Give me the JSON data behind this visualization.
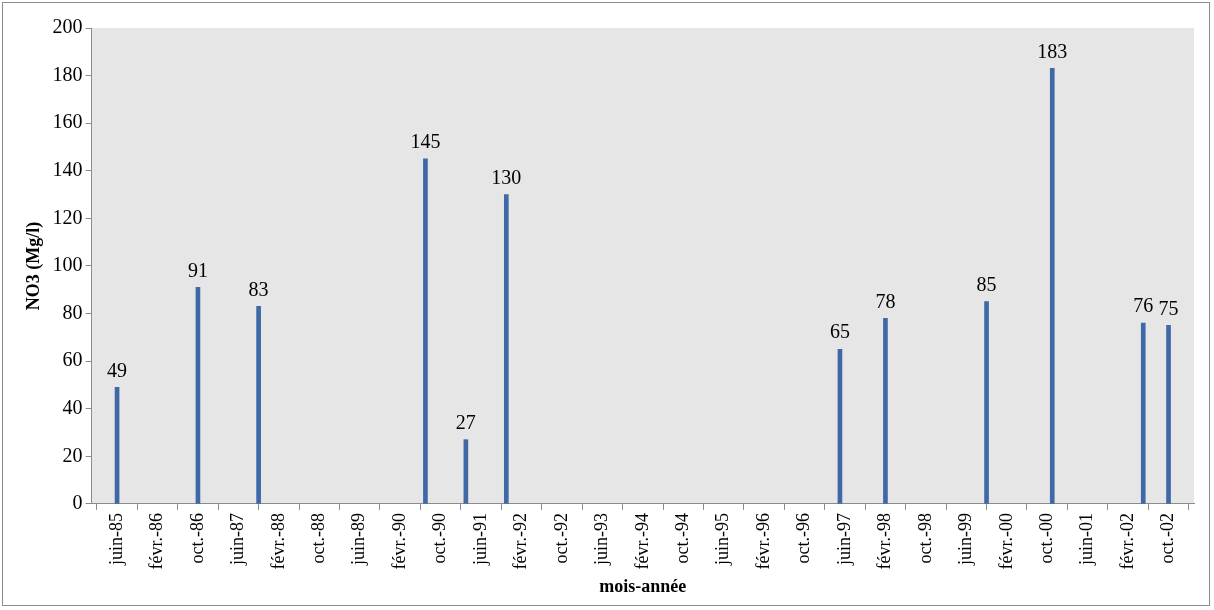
{
  "chart_data": {
    "type": "bar",
    "xlabel": "mois-année",
    "ylabel": "NO3 (Mg/l)",
    "x": [
      "1985-06",
      "1986-10",
      "1987-10",
      "1990-07",
      "1991-03",
      "1991-11",
      "1997-05",
      "1998-02",
      "1999-10",
      "2000-11",
      "2002-05",
      "2002-10"
    ],
    "values": [
      49,
      91,
      83,
      145,
      27,
      130,
      65,
      78,
      85,
      183,
      76,
      75
    ],
    "color": "#3e68a6",
    "data_labels": true,
    "xlim": [
      "1985-05",
      "2002-11"
    ],
    "xticks": [
      {
        "value": "1985-06",
        "label": "juin-85"
      },
      {
        "value": "1986-02",
        "label": "févr.-86"
      },
      {
        "value": "1986-10",
        "label": "oct.-86"
      },
      {
        "value": "1987-06",
        "label": "juin-87"
      },
      {
        "value": "1988-02",
        "label": "févr.-88"
      },
      {
        "value": "1988-10",
        "label": "oct.-88"
      },
      {
        "value": "1989-06",
        "label": "juin-89"
      },
      {
        "value": "1990-02",
        "label": "févr.-90"
      },
      {
        "value": "1990-10",
        "label": "oct.-90"
      },
      {
        "value": "1991-06",
        "label": "juin-91"
      },
      {
        "value": "1992-02",
        "label": "févr.-92"
      },
      {
        "value": "1992-10",
        "label": "oct.-92"
      },
      {
        "value": "1993-06",
        "label": "juin-93"
      },
      {
        "value": "1994-02",
        "label": "févr.-94"
      },
      {
        "value": "1994-10",
        "label": "oct.-94"
      },
      {
        "value": "1995-06",
        "label": "juin-95"
      },
      {
        "value": "1996-02",
        "label": "févr.-96"
      },
      {
        "value": "1996-10",
        "label": "oct.-96"
      },
      {
        "value": "1997-06",
        "label": "juin-97"
      },
      {
        "value": "1998-02",
        "label": "févr.-98"
      },
      {
        "value": "1998-10",
        "label": "oct.-98"
      },
      {
        "value": "1999-06",
        "label": "juin-99"
      },
      {
        "value": "2000-02",
        "label": "févr.-00"
      },
      {
        "value": "2000-10",
        "label": "oct.-00"
      },
      {
        "value": "2001-06",
        "label": "juin-01"
      },
      {
        "value": "2002-02",
        "label": "févr.-02"
      },
      {
        "value": "2002-10",
        "label": "oct.-02"
      }
    ],
    "ylim": [
      0,
      200
    ],
    "yticks": [
      0,
      20,
      40,
      60,
      80,
      100,
      120,
      140,
      160,
      180,
      200
    ],
    "grid": false,
    "legend": false
  }
}
